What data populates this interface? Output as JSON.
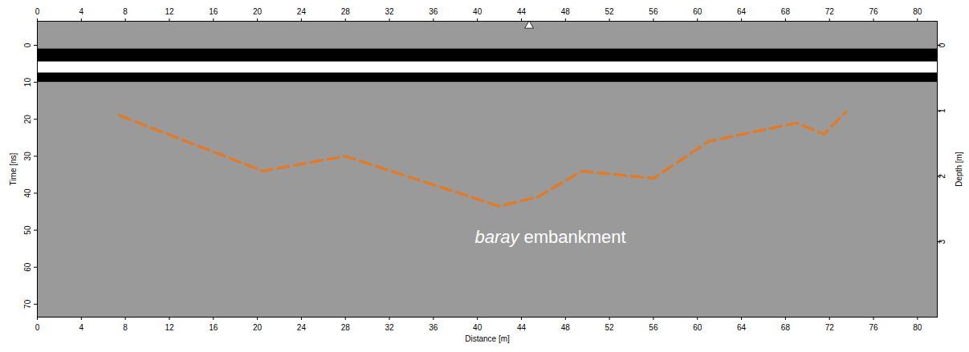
{
  "chart_data": {
    "type": "line",
    "xlabel": "Distance [m]",
    "ylabel": "Time [ns]",
    "y2label": "Depth [m]",
    "xlim": [
      0,
      81.8
    ],
    "xticks": [
      0,
      4,
      8,
      12,
      16,
      20,
      24,
      28,
      32,
      36,
      40,
      44,
      48,
      52,
      56,
      60,
      64,
      68,
      72,
      76,
      80
    ],
    "ylim": [
      -6.5,
      73.5
    ],
    "yticks": [
      0,
      10,
      20,
      30,
      40,
      50,
      60,
      70
    ],
    "y2lim": [
      -0.3672,
      4.1525
    ],
    "y2ticks": [
      0,
      1,
      2,
      3
    ],
    "x": [
      7.5,
      20.5,
      28,
      42,
      45.5,
      49.5,
      56,
      61,
      69,
      71.5,
      73.5
    ],
    "values": [
      19,
      34,
      30,
      43.5,
      41,
      34,
      36,
      26,
      21,
      24,
      18
    ],
    "color": "#e07b2a",
    "line_style": "dashed",
    "background": "#9a9a9a",
    "bands": [
      {
        "y1": 1,
        "y2": 4.5,
        "color": "#000000"
      },
      {
        "y1": 4.5,
        "y2": 7.5,
        "color": "#ffffff"
      },
      {
        "y1": 7.5,
        "y2": 10,
        "color": "#000000"
      }
    ],
    "points": [
      {
        "x": 44.7,
        "y": -5.3,
        "marker": "triangle",
        "color": "#ffffff"
      }
    ],
    "annotations": [
      {
        "text": "baray embankment",
        "x": 44,
        "y": 52,
        "color": "#ffffff"
      }
    ]
  }
}
